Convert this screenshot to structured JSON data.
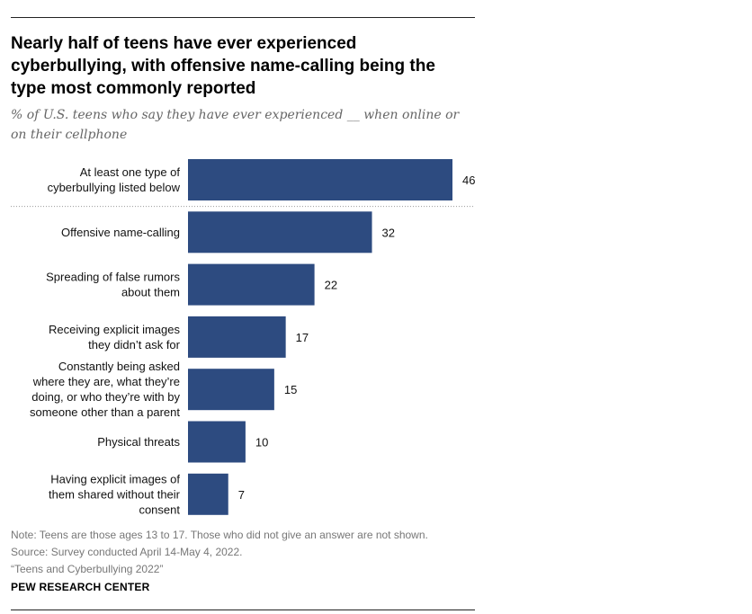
{
  "header": {
    "title": "Nearly half of teens have ever experienced cyberbullying, with offensive name-calling being the type most commonly reported",
    "subtitle": "% of U.S. teens who say they have ever experienced __ when online or on their cellphone"
  },
  "chart_data": {
    "type": "bar",
    "orientation": "horizontal",
    "categories": [
      [
        "At least one type of",
        "cyberbullying listed below"
      ],
      [
        "Offensive name-calling"
      ],
      [
        "Spreading of false rumors",
        "about them"
      ],
      [
        "Receiving explicit images",
        "they didn’t ask for"
      ],
      [
        "Constantly being asked",
        "where they are, what they’re",
        "doing, or who they’re with by",
        "someone other than a parent"
      ],
      [
        "Physical threats"
      ],
      [
        "Having explicit images of",
        "them shared without their",
        "consent"
      ]
    ],
    "values": [
      46,
      32,
      22,
      17,
      15,
      10,
      7
    ],
    "xlim": [
      0,
      46
    ],
    "bar_color": "#2d4b80",
    "separator_after_first": true,
    "grid": false,
    "legend": "none"
  },
  "footer": {
    "note": "Note: Teens are those ages 13 to 17. Those who did not give an answer are not shown.",
    "source": "Source: Survey conducted April 14-May 4, 2022.",
    "report": "“Teens and Cyberbullying 2022”",
    "brand": "PEW RESEARCH CENTER"
  }
}
